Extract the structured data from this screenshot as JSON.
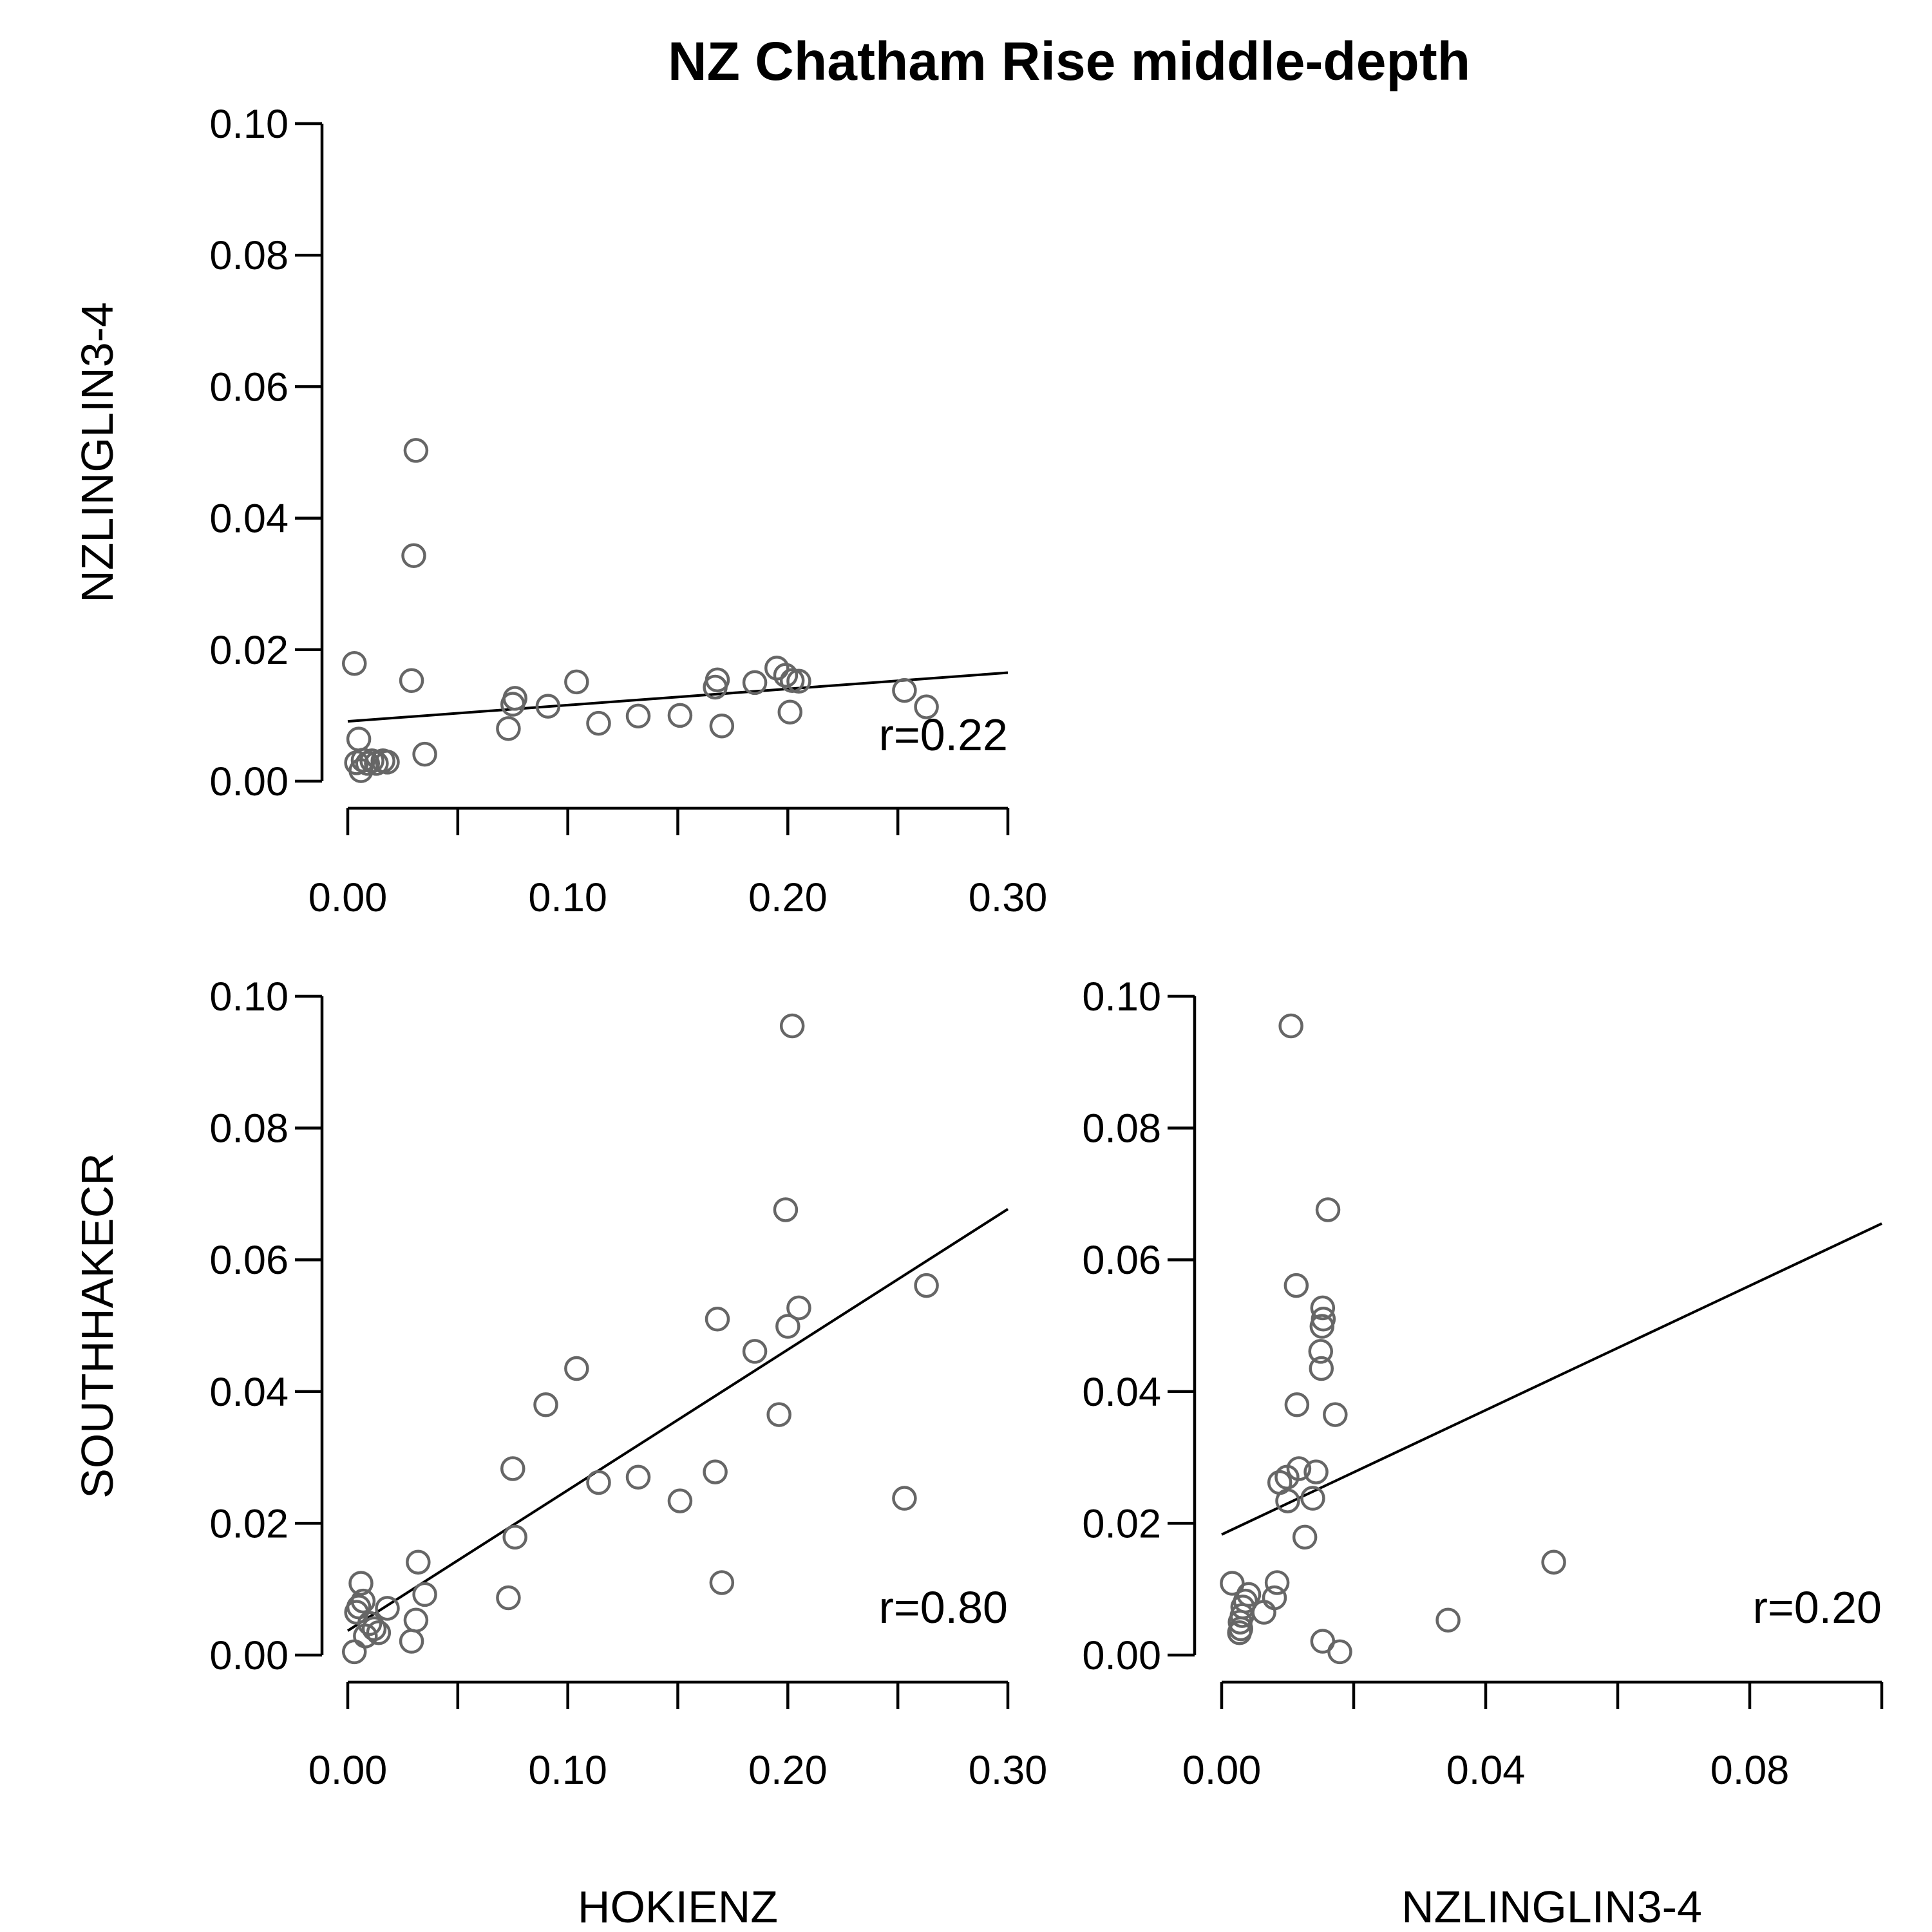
{
  "title": "NZ Chatham Rise middle-depth",
  "colors": {
    "point": "#666666",
    "line": "#000000",
    "background": "#ffffff"
  },
  "chart_data": [
    {
      "type": "scatter",
      "xlabel": "",
      "ylabel": "NZLINGLIN3-4",
      "xlim": [
        0,
        0.3
      ],
      "ylim": [
        0,
        0.1
      ],
      "xticks": [
        0,
        0.05,
        0.1,
        0.15,
        0.2,
        0.25,
        0.3
      ],
      "xticklabels": [
        "0.00",
        "",
        "0.10",
        "",
        "0.20",
        "",
        "0.30"
      ],
      "yticks": [
        0,
        0.02,
        0.04,
        0.06,
        0.08,
        0.1
      ],
      "yticklabels": [
        "0.00",
        "0.02",
        "0.04",
        "0.06",
        "0.08",
        "0.10"
      ],
      "annotation": "r=0.22",
      "fit_line": {
        "x": [
          0,
          0.3
        ],
        "y": [
          0.0091,
          0.0165
        ]
      },
      "points": [
        [
          0.003,
          0.0179
        ],
        [
          0.005,
          0.0064
        ],
        [
          0.006,
          0.0016
        ],
        [
          0.004,
          0.0028
        ],
        [
          0.007,
          0.0032
        ],
        [
          0.009,
          0.0027
        ],
        [
          0.011,
          0.0031
        ],
        [
          0.013,
          0.0027
        ],
        [
          0.016,
          0.0031
        ],
        [
          0.018,
          0.0029
        ],
        [
          0.029,
          0.0153
        ],
        [
          0.03,
          0.0343
        ],
        [
          0.031,
          0.0503
        ],
        [
          0.035,
          0.0041
        ],
        [
          0.073,
          0.008
        ],
        [
          0.075,
          0.0117
        ],
        [
          0.076,
          0.0126
        ],
        [
          0.091,
          0.0114
        ],
        [
          0.104,
          0.0151
        ],
        [
          0.114,
          0.0088
        ],
        [
          0.132,
          0.0099
        ],
        [
          0.151,
          0.01
        ],
        [
          0.167,
          0.0143
        ],
        [
          0.168,
          0.0154
        ],
        [
          0.17,
          0.0084
        ],
        [
          0.185,
          0.015
        ],
        [
          0.195,
          0.0172
        ],
        [
          0.199,
          0.0161
        ],
        [
          0.201,
          0.0105
        ],
        [
          0.202,
          0.0153
        ],
        [
          0.205,
          0.0152
        ],
        [
          0.253,
          0.0138
        ],
        [
          0.263,
          0.0113
        ]
      ]
    },
    {
      "type": "scatter",
      "xlabel": "HOKIENZ",
      "ylabel": "SOUTHHAKECR",
      "xlim": [
        0,
        0.3
      ],
      "ylim": [
        0,
        0.1
      ],
      "xticks": [
        0,
        0.05,
        0.1,
        0.15,
        0.2,
        0.25,
        0.3
      ],
      "xticklabels": [
        "0.00",
        "",
        "0.10",
        "",
        "0.20",
        "",
        "0.30"
      ],
      "yticks": [
        0,
        0.02,
        0.04,
        0.06,
        0.08,
        0.1
      ],
      "yticklabels": [
        "0.00",
        "0.02",
        "0.04",
        "0.06",
        "0.08",
        "0.10"
      ],
      "annotation": "r=0.80",
      "fit_line": {
        "x": [
          0,
          0.3
        ],
        "y": [
          0.0037,
          0.0677
        ]
      },
      "points": [
        [
          0.003,
          0.0005
        ],
        [
          0.004,
          0.0065
        ],
        [
          0.005,
          0.0073
        ],
        [
          0.006,
          0.0109
        ],
        [
          0.007,
          0.0082
        ],
        [
          0.008,
          0.0029
        ],
        [
          0.01,
          0.0048
        ],
        [
          0.012,
          0.004
        ],
        [
          0.014,
          0.0034
        ],
        [
          0.018,
          0.0071
        ],
        [
          0.029,
          0.0021
        ],
        [
          0.031,
          0.0053
        ],
        [
          0.032,
          0.0141
        ],
        [
          0.035,
          0.0092
        ],
        [
          0.073,
          0.0087
        ],
        [
          0.075,
          0.0283
        ],
        [
          0.076,
          0.0179
        ],
        [
          0.09,
          0.038
        ],
        [
          0.104,
          0.0435
        ],
        [
          0.114,
          0.0262
        ],
        [
          0.132,
          0.027
        ],
        [
          0.151,
          0.0234
        ],
        [
          0.167,
          0.0278
        ],
        [
          0.168,
          0.051
        ],
        [
          0.17,
          0.011
        ],
        [
          0.185,
          0.0461
        ],
        [
          0.196,
          0.0365
        ],
        [
          0.199,
          0.0676
        ],
        [
          0.2,
          0.0499
        ],
        [
          0.202,
          0.0955
        ],
        [
          0.205,
          0.0527
        ],
        [
          0.253,
          0.0238
        ],
        [
          0.263,
          0.0561
        ]
      ]
    },
    {
      "type": "scatter",
      "xlabel": "NZLINGLIN3-4",
      "ylabel": "",
      "xlim": [
        0,
        0.1
      ],
      "ylim": [
        0,
        0.1
      ],
      "xticks": [
        0,
        0.02,
        0.04,
        0.06,
        0.08,
        0.1
      ],
      "xticklabels": [
        "0.00",
        "",
        "0.04",
        "",
        "0.08",
        ""
      ],
      "yticks": [
        0,
        0.02,
        0.04,
        0.06,
        0.08,
        0.1
      ],
      "yticklabels": [
        "0.00",
        "0.02",
        "0.04",
        "0.06",
        "0.08",
        "0.10"
      ],
      "annotation": "r=0.20",
      "fit_line": {
        "x": [
          0,
          0.1
        ],
        "y": [
          0.0183,
          0.0655
        ]
      },
      "points": [
        [
          0.0016,
          0.0109
        ],
        [
          0.0027,
          0.0034
        ],
        [
          0.0028,
          0.005
        ],
        [
          0.0029,
          0.004
        ],
        [
          0.0031,
          0.006
        ],
        [
          0.0032,
          0.0073
        ],
        [
          0.0036,
          0.0082
        ],
        [
          0.0041,
          0.0092
        ],
        [
          0.0064,
          0.0065
        ],
        [
          0.008,
          0.0087
        ],
        [
          0.0084,
          0.011
        ],
        [
          0.0088,
          0.0262
        ],
        [
          0.0099,
          0.027
        ],
        [
          0.01,
          0.0234
        ],
        [
          0.0105,
          0.0955
        ],
        [
          0.0113,
          0.0561
        ],
        [
          0.0114,
          0.038
        ],
        [
          0.0117,
          0.0283
        ],
        [
          0.0126,
          0.0179
        ],
        [
          0.0138,
          0.0238
        ],
        [
          0.0143,
          0.0278
        ],
        [
          0.015,
          0.0461
        ],
        [
          0.0151,
          0.0435
        ],
        [
          0.0152,
          0.0499
        ],
        [
          0.0153,
          0.0527
        ],
        [
          0.0154,
          0.051
        ],
        [
          0.0161,
          0.0676
        ],
        [
          0.0153,
          0.0021
        ],
        [
          0.0172,
          0.0365
        ],
        [
          0.0179,
          0.0005
        ],
        [
          0.0343,
          0.0053
        ],
        [
          0.0503,
          0.0141
        ]
      ]
    }
  ]
}
